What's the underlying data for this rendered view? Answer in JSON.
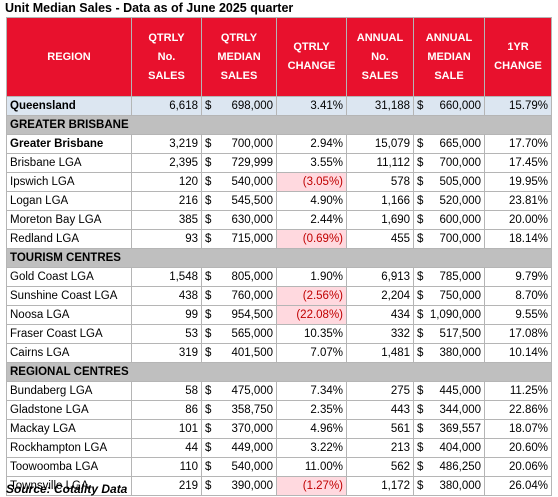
{
  "title": "Unit Median Sales - Data as of June 2025 quarter",
  "source": "Source: Cotality Data",
  "colors": {
    "header_bg": "#e8112d",
    "section_bg": "#bfbfbf",
    "qld_bg": "#dce6f1",
    "negative_bg": "#ffd9df",
    "negative_text": "#c00000"
  },
  "headers": {
    "region": "REGION",
    "qtrly_sales": [
      "QTRLY",
      "No.",
      "SALES"
    ],
    "qtrly_median": [
      "QTRLY",
      "MEDIAN",
      "SALES"
    ],
    "qtrly_change": [
      "QTRLY",
      "CHANGE"
    ],
    "annual_sales": [
      "ANNUAL",
      "No.",
      "SALES"
    ],
    "annual_median": [
      "ANNUAL",
      "MEDIAN",
      "SALE"
    ],
    "yr_change": [
      "1YR",
      "CHANGE"
    ]
  },
  "queensland": {
    "region": "Queensland",
    "qtrly_sales": "6,618",
    "currency": "$",
    "qtrly_median": "698,000",
    "qtrly_change": "3.41%",
    "annual_sales": "31,188",
    "annual_median": "660,000",
    "yr_change": "15.79%"
  },
  "sections": [
    {
      "label": "GREATER BRISBANE",
      "rows": [
        {
          "region": "Greater Brisbane",
          "qtrly_sales": "3,219",
          "qtrly_median": "700,000",
          "qtrly_change": "2.94%",
          "annual_sales": "15,079",
          "annual_median": "665,000",
          "yr_change": "17.70%",
          "bold": true
        },
        {
          "region": "Brisbane LGA",
          "qtrly_sales": "2,395",
          "qtrly_median": "729,999",
          "qtrly_change": "3.55%",
          "annual_sales": "11,112",
          "annual_median": "700,000",
          "yr_change": "17.45%"
        },
        {
          "region": "Ipswich LGA",
          "qtrly_sales": "120",
          "qtrly_median": "540,000",
          "qtrly_change": "(3.05%)",
          "annual_sales": "578",
          "annual_median": "505,000",
          "yr_change": "19.95%",
          "negative": true
        },
        {
          "region": "Logan LGA",
          "qtrly_sales": "216",
          "qtrly_median": "545,500",
          "qtrly_change": "4.90%",
          "annual_sales": "1,166",
          "annual_median": "520,000",
          "yr_change": "23.81%"
        },
        {
          "region": "Moreton Bay LGA",
          "qtrly_sales": "385",
          "qtrly_median": "630,000",
          "qtrly_change": "2.44%",
          "annual_sales": "1,690",
          "annual_median": "600,000",
          "yr_change": "20.00%"
        },
        {
          "region": "Redland LGA",
          "qtrly_sales": "93",
          "qtrly_median": "715,000",
          "qtrly_change": "(0.69%)",
          "annual_sales": "455",
          "annual_median": "700,000",
          "yr_change": "18.14%",
          "negative": true
        }
      ]
    },
    {
      "label": "TOURISM CENTRES",
      "rows": [
        {
          "region": "Gold Coast LGA",
          "qtrly_sales": "1,548",
          "qtrly_median": "805,000",
          "qtrly_change": "1.90%",
          "annual_sales": "6,913",
          "annual_median": "785,000",
          "yr_change": "9.79%"
        },
        {
          "region": "Sunshine Coast LGA",
          "qtrly_sales": "438",
          "qtrly_median": "760,000",
          "qtrly_change": "(2.56%)",
          "annual_sales": "2,204",
          "annual_median": "750,000",
          "yr_change": "8.70%",
          "negative": true
        },
        {
          "region": "Noosa LGA",
          "qtrly_sales": "99",
          "qtrly_median": "954,500",
          "qtrly_change": "(22.08%)",
          "annual_sales": "434",
          "annual_median": "1,090,000",
          "yr_change": "9.55%",
          "negative": true
        },
        {
          "region": "Fraser Coast LGA",
          "qtrly_sales": "53",
          "qtrly_median": "565,000",
          "qtrly_change": "10.35%",
          "annual_sales": "332",
          "annual_median": "517,500",
          "yr_change": "17.08%"
        },
        {
          "region": "Cairns LGA",
          "qtrly_sales": "319",
          "qtrly_median": "401,500",
          "qtrly_change": "7.07%",
          "annual_sales": "1,481",
          "annual_median": "380,000",
          "yr_change": "10.14%"
        }
      ]
    },
    {
      "label": "REGIONAL CENTRES",
      "rows": [
        {
          "region": "Bundaberg LGA",
          "qtrly_sales": "58",
          "qtrly_median": "475,000",
          "qtrly_change": "7.34%",
          "annual_sales": "275",
          "annual_median": "445,000",
          "yr_change": "11.25%"
        },
        {
          "region": "Gladstone LGA",
          "qtrly_sales": "86",
          "qtrly_median": "358,750",
          "qtrly_change": "2.35%",
          "annual_sales": "443",
          "annual_median": "344,000",
          "yr_change": "22.86%"
        },
        {
          "region": "Mackay LGA",
          "qtrly_sales": "101",
          "qtrly_median": "370,000",
          "qtrly_change": "4.96%",
          "annual_sales": "561",
          "annual_median": "369,557",
          "yr_change": "18.07%"
        },
        {
          "region": "Rockhampton LGA",
          "qtrly_sales": "44",
          "qtrly_median": "449,000",
          "qtrly_change": "3.22%",
          "annual_sales": "213",
          "annual_median": "404,000",
          "yr_change": "20.60%"
        },
        {
          "region": "Toowoomba LGA",
          "qtrly_sales": "110",
          "qtrly_median": "540,000",
          "qtrly_change": "11.00%",
          "annual_sales": "562",
          "annual_median": "486,250",
          "yr_change": "20.06%"
        },
        {
          "region": "Townsville LGA",
          "qtrly_sales": "219",
          "qtrly_median": "390,000",
          "qtrly_change": "(1.27%)",
          "annual_sales": "1,172",
          "annual_median": "380,000",
          "yr_change": "26.04%",
          "negative": true
        }
      ]
    }
  ]
}
